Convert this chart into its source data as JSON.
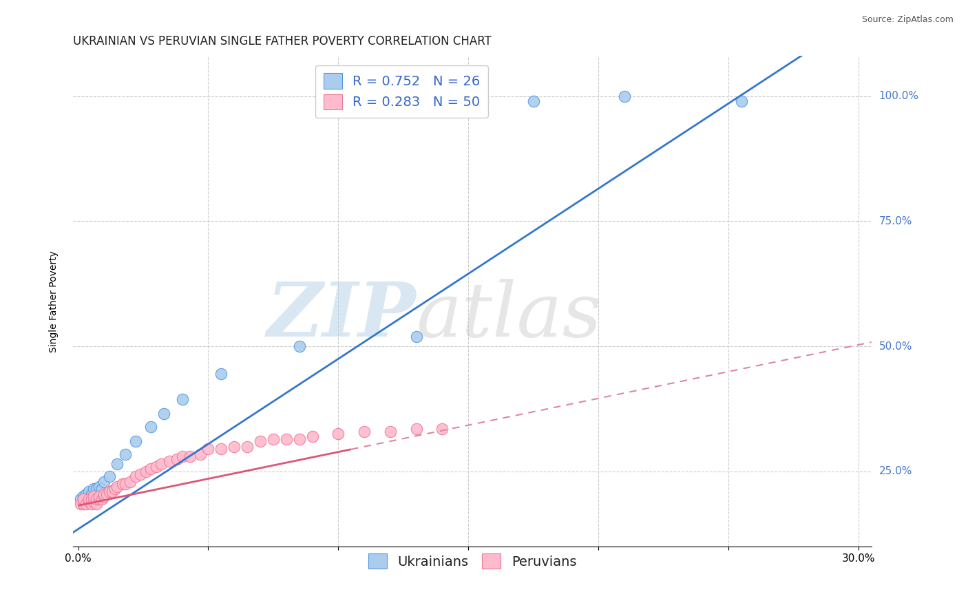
{
  "title": "UKRAINIAN VS PERUVIAN SINGLE FATHER POVERTY CORRELATION CHART",
  "source": "Source: ZipAtlas.com",
  "xlabel": "",
  "ylabel": "Single Father Poverty",
  "watermark_zip": "ZIP",
  "watermark_atlas": "atlas",
  "xlim": [
    -0.002,
    0.305
  ],
  "ylim": [
    0.1,
    1.08
  ],
  "xticks": [
    0.0,
    0.05,
    0.1,
    0.15,
    0.2,
    0.25,
    0.3
  ],
  "xtick_labels": [
    "0.0%",
    "",
    "",
    "",
    "",
    "",
    "30.0%"
  ],
  "yticks": [
    0.25,
    0.5,
    0.75,
    1.0
  ],
  "ytick_labels": [
    "25.0%",
    "50.0%",
    "75.0%",
    "100.0%"
  ],
  "ukrainian_color": "#aaccee",
  "peruvian_color": "#ffbbcc",
  "ukrainian_edge_color": "#5599dd",
  "peruvian_edge_color": "#ee7799",
  "ukrainian_line_color": "#3377cc",
  "peruvian_line_color": "#dd5577",
  "peruvian_dash_color": "#dd8899",
  "R_ukrainian": 0.752,
  "N_ukrainian": 26,
  "R_peruvian": 0.283,
  "N_peruvian": 50,
  "legend_label_ukrainian": "Ukrainians",
  "legend_label_peruvian": "Peruvians",
  "ukrainian_x": [
    0.001,
    0.002,
    0.003,
    0.003,
    0.004,
    0.005,
    0.005,
    0.006,
    0.007,
    0.007,
    0.008,
    0.009,
    0.01,
    0.012,
    0.015,
    0.018,
    0.022,
    0.028,
    0.033,
    0.04,
    0.055,
    0.085,
    0.13,
    0.175,
    0.21,
    0.255
  ],
  "ukrainian_y": [
    0.195,
    0.2,
    0.195,
    0.205,
    0.21,
    0.195,
    0.205,
    0.215,
    0.2,
    0.215,
    0.22,
    0.215,
    0.23,
    0.24,
    0.265,
    0.285,
    0.31,
    0.34,
    0.365,
    0.395,
    0.445,
    0.5,
    0.52,
    0.99,
    1.0,
    0.99
  ],
  "peruvian_x": [
    0.001,
    0.002,
    0.002,
    0.003,
    0.004,
    0.004,
    0.005,
    0.005,
    0.006,
    0.006,
    0.007,
    0.007,
    0.008,
    0.008,
    0.009,
    0.01,
    0.01,
    0.011,
    0.012,
    0.013,
    0.014,
    0.015,
    0.017,
    0.018,
    0.02,
    0.022,
    0.024,
    0.026,
    0.028,
    0.03,
    0.032,
    0.035,
    0.038,
    0.04,
    0.043,
    0.047,
    0.05,
    0.055,
    0.06,
    0.065,
    0.07,
    0.075,
    0.08,
    0.085,
    0.09,
    0.1,
    0.11,
    0.12,
    0.13,
    0.14
  ],
  "peruvian_y": [
    0.185,
    0.185,
    0.195,
    0.185,
    0.19,
    0.195,
    0.185,
    0.195,
    0.19,
    0.2,
    0.185,
    0.195,
    0.195,
    0.2,
    0.195,
    0.2,
    0.205,
    0.205,
    0.21,
    0.21,
    0.215,
    0.22,
    0.225,
    0.225,
    0.23,
    0.24,
    0.245,
    0.25,
    0.255,
    0.26,
    0.265,
    0.27,
    0.275,
    0.28,
    0.28,
    0.285,
    0.295,
    0.295,
    0.3,
    0.3,
    0.31,
    0.315,
    0.315,
    0.315,
    0.32,
    0.325,
    0.33,
    0.33,
    0.335,
    0.335
  ],
  "background_color": "#ffffff",
  "grid_color": "#cccccc",
  "grid_style": "--",
  "title_fontsize": 12,
  "label_fontsize": 10,
  "tick_fontsize": 11,
  "legend_fontsize": 14,
  "scatter_size": 140
}
